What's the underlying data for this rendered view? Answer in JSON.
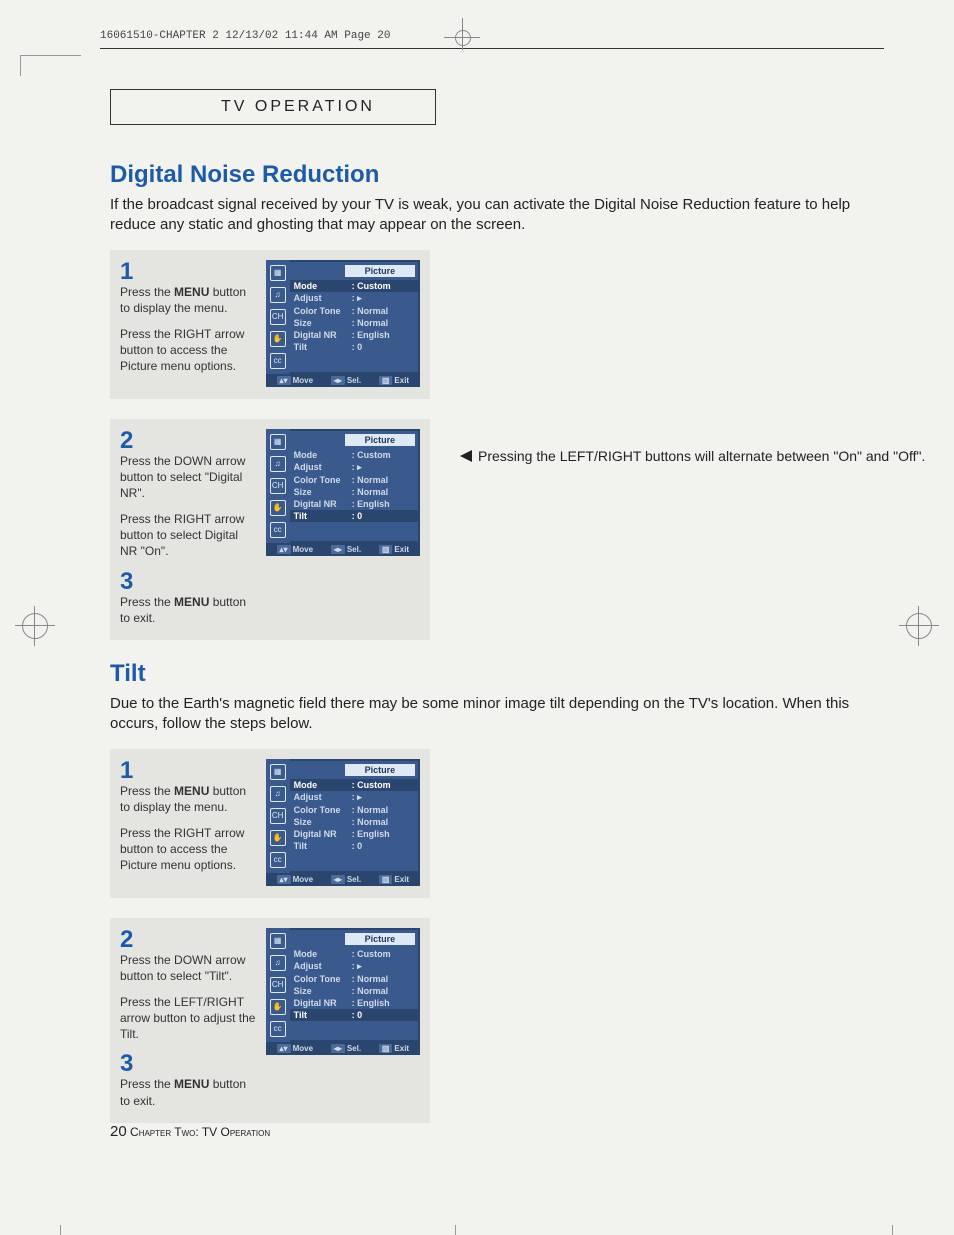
{
  "header_slug": "16061510-CHAPTER 2  12/13/02 11:44 AM  Page 20",
  "tab": "TV OPERATION",
  "section1": {
    "title": "Digital Noise Reduction",
    "intro": "If the broadcast signal received by your TV is weak, you can activate the Digital Noise Reduction feature to help reduce any static and ghosting that may appear on the screen.",
    "steps": [
      {
        "num": "1",
        "lines": [
          "Press the <b>MENU</b> button to display the menu.",
          "Press the RIGHT arrow button to access the Picture menu options."
        ]
      },
      {
        "num": "2",
        "lines": [
          "Press the DOWN arrow button to select \"Digital NR\".",
          "Press the RIGHT arrow button to select Digital NR \"On\"."
        ]
      },
      {
        "num": "3",
        "lines": [
          "Press the <b>MENU</b> button to exit."
        ]
      }
    ]
  },
  "note_text": "Pressing the LEFT/RIGHT  buttons will alternate between \"On\" and \"Off\".",
  "section2": {
    "title": "Tilt",
    "intro": "Due to the Earth's magnetic field there may be some minor image tilt depending on the TV's location. When this occurs, follow the steps below.",
    "steps": [
      {
        "num": "1",
        "lines": [
          "Press the <b>MENU</b> button to display the menu.",
          "Press the RIGHT arrow button to access the Picture menu options."
        ]
      },
      {
        "num": "2",
        "lines": [
          "Press the DOWN arrow button to select \"Tilt\".",
          "Press the LEFT/RIGHT arrow button to adjust the Tilt."
        ]
      },
      {
        "num": "3",
        "lines": [
          "Press the <b>MENU</b> button to exit."
        ]
      }
    ]
  },
  "osd": {
    "title": "Picture",
    "icons": [
      "▦",
      "♫",
      "CH",
      "✋",
      "cc"
    ],
    "rows": [
      {
        "k": "Mode",
        "v": "Custom"
      },
      {
        "k": "Adjust",
        "v": "▸"
      },
      {
        "k": "Color Tone",
        "v": "Normal"
      },
      {
        "k": "Size",
        "v": "Normal"
      },
      {
        "k": "Digital NR",
        "v": "English"
      },
      {
        "k": "Tilt",
        "v": " 0"
      }
    ],
    "foot": {
      "move": "Move",
      "sel": "Sel.",
      "exit": "Exit"
    }
  },
  "osd_hl": {
    "screen1": 0,
    "screen2": 5,
    "screen3": 0,
    "screen4": 5
  },
  "footer": {
    "page": "20",
    "text": "Chapter Two: TV Operation"
  },
  "colors": {
    "accent": "#1d5aa8",
    "step_bg": "#e4e4e0",
    "osd_bg": "#3a5a8e",
    "osd_dark": "#2a466f",
    "osd_light": "#dfe8f5"
  }
}
